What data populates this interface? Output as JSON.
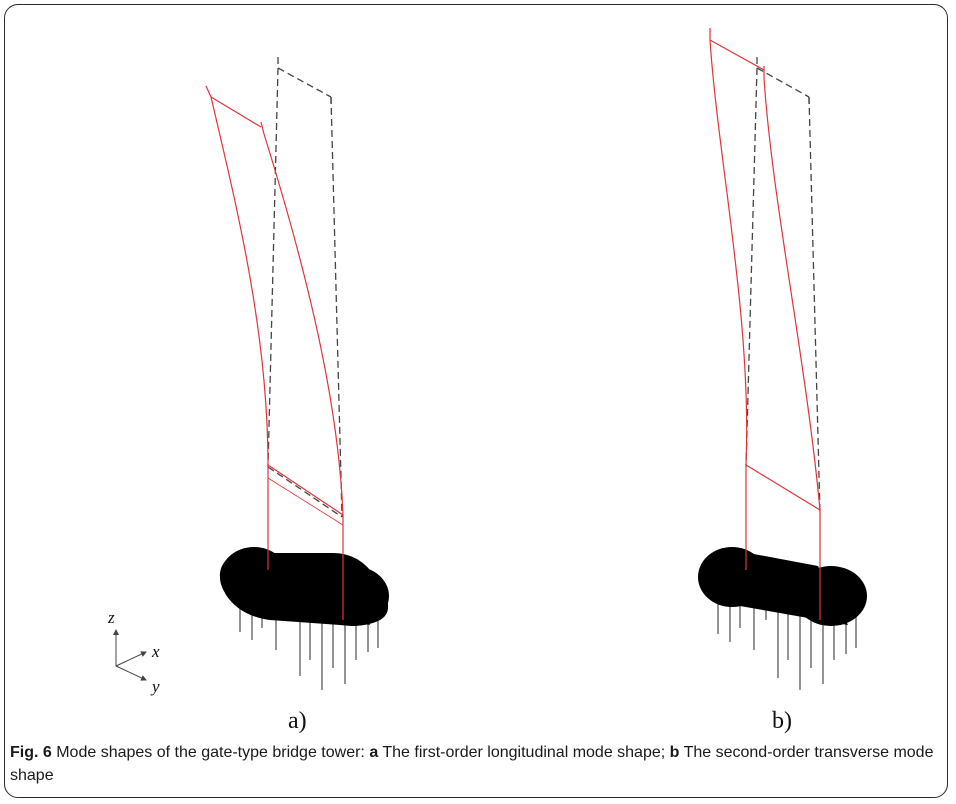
{
  "panels": [
    {
      "label": "a)"
    },
    {
      "label": "b)"
    }
  ],
  "axes_triad": {
    "z": "z",
    "x": "x",
    "y": "y"
  },
  "colors": {
    "deformed": "#e0343a",
    "undeformed": "#444444",
    "cap": "#000000",
    "piles": "#666666",
    "frame": "#2b2b2b"
  },
  "caption": {
    "fig_label": "Fig. 6",
    "intro": " Mode shapes of the gate-type bridge tower: ",
    "a_label": "a",
    "a_text": " The first-order longitudinal mode shape; ",
    "b_label": "b",
    "b_text": " The second-order transverse mode shape"
  }
}
